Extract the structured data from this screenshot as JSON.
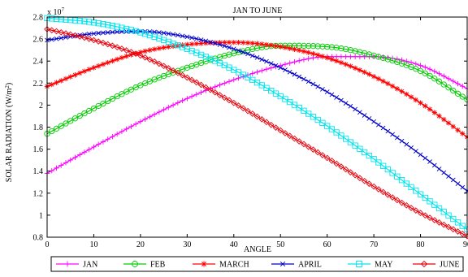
{
  "chart_data": {
    "type": "line",
    "title": "JAN TO JUNE",
    "xlabel": "ANGLE",
    "ylabel": "SOLAR RADIATION (W/m",
    "ylabel_sup": "2",
    "ylabel_close": ")",
    "exponent_base": "x 10",
    "exponent_power": "7",
    "xlim": [
      0,
      90
    ],
    "ylim": [
      0.8,
      2.8
    ],
    "xticks": [
      0,
      10,
      20,
      30,
      40,
      50,
      60,
      70,
      80,
      90
    ],
    "yticks": [
      0.8,
      1,
      1.2,
      1.4,
      1.6,
      1.8,
      2,
      2.2,
      2.4,
      2.6,
      2.8
    ],
    "xtick_labels": [
      "0",
      "10",
      "20",
      "30",
      "40",
      "50",
      "60",
      "70",
      "80",
      "90"
    ],
    "ytick_labels": [
      "0.8",
      "1",
      "1.2",
      "1.4",
      "1.6",
      "1.8",
      "2",
      "2.2",
      "2.4",
      "2.6",
      "2.8"
    ],
    "grid": false,
    "legend_position": "bottom",
    "series": [
      {
        "name": "JAN",
        "color": "#ff00ff",
        "marker": "plus",
        "x": [
          0,
          10,
          20,
          30,
          40,
          50,
          60,
          70,
          80,
          90
        ],
        "y": [
          1.38,
          1.62,
          1.85,
          2.06,
          2.23,
          2.36,
          2.44,
          2.44,
          2.36,
          2.15
        ]
      },
      {
        "name": "FEB",
        "color": "#00cc00",
        "marker": "circle",
        "x": [
          0,
          10,
          20,
          30,
          40,
          50,
          60,
          70,
          80,
          90
        ],
        "y": [
          1.74,
          1.97,
          2.18,
          2.34,
          2.47,
          2.54,
          2.53,
          2.45,
          2.31,
          2.05
        ]
      },
      {
        "name": "MARCH",
        "color": "#ff0000",
        "marker": "star",
        "x": [
          0,
          10,
          20,
          30,
          40,
          50,
          60,
          70,
          80,
          90
        ],
        "y": [
          2.17,
          2.34,
          2.48,
          2.55,
          2.57,
          2.53,
          2.43,
          2.26,
          2.02,
          1.71
        ]
      },
      {
        "name": "APRIL",
        "color": "#0000cc",
        "marker": "x",
        "x": [
          0,
          10,
          20,
          30,
          40,
          50,
          60,
          70,
          80,
          90
        ],
        "y": [
          2.59,
          2.65,
          2.67,
          2.62,
          2.51,
          2.34,
          2.12,
          1.85,
          1.55,
          1.22
        ]
      },
      {
        "name": "MAY",
        "color": "#00e5ee",
        "marker": "square",
        "x": [
          0,
          10,
          20,
          30,
          40,
          50,
          60,
          70,
          80,
          90
        ],
        "y": [
          2.79,
          2.75,
          2.66,
          2.51,
          2.32,
          2.08,
          1.81,
          1.51,
          1.19,
          0.87
        ]
      },
      {
        "name": "JUNE",
        "color": "#e8000b",
        "marker": "diamond",
        "x": [
          0,
          10,
          20,
          30,
          40,
          50,
          60,
          70,
          80,
          90
        ],
        "y": [
          2.69,
          2.59,
          2.45,
          2.25,
          2.02,
          1.77,
          1.52,
          1.26,
          1.02,
          0.81
        ]
      }
    ]
  }
}
